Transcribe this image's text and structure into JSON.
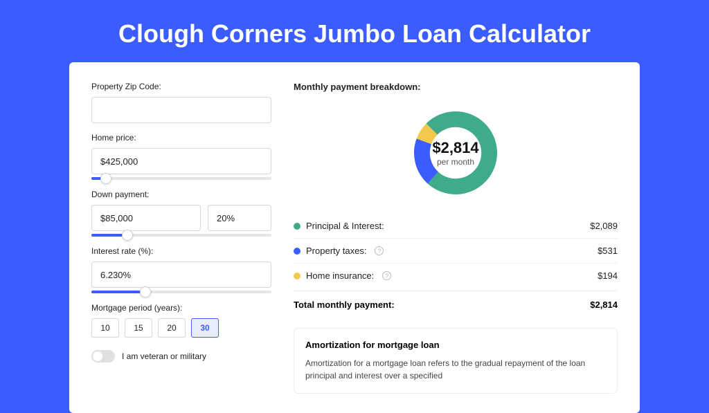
{
  "page": {
    "title": "Clough Corners Jumbo Loan Calculator",
    "background_color": "#3b5dff",
    "panel_background": "#ffffff"
  },
  "form": {
    "zip": {
      "label": "Property Zip Code:",
      "value": ""
    },
    "home_price": {
      "label": "Home price:",
      "value": "$425,000",
      "slider_pct": 8
    },
    "down_payment": {
      "label": "Down payment:",
      "amount": "$85,000",
      "pct": "20%",
      "slider_pct": 20
    },
    "interest_rate": {
      "label": "Interest rate (%):",
      "value": "6.230%",
      "slider_pct": 30
    },
    "mortgage_period": {
      "label": "Mortgage period (years):",
      "options": [
        "10",
        "15",
        "20",
        "30"
      ],
      "selected": "30"
    },
    "veteran": {
      "label": "I am veteran or military",
      "checked": false
    }
  },
  "breakdown": {
    "title": "Monthly payment breakdown:",
    "donut": {
      "total_label": "$2,814",
      "sub_label": "per month",
      "slices": [
        {
          "key": "principal_interest",
          "value": 2089,
          "color": "#3fab8b",
          "start_deg": -45,
          "sweep_deg": 267.2
        },
        {
          "key": "property_taxes",
          "value": 531,
          "color": "#3b5dff",
          "start_deg": 222.2,
          "sweep_deg": 67.9
        },
        {
          "key": "home_insurance",
          "value": 194,
          "color": "#f2c94c",
          "start_deg": 290.1,
          "sweep_deg": 24.9
        }
      ],
      "inner_ratio": 0.62
    },
    "items": [
      {
        "label": "Principal & Interest:",
        "value": "$2,089",
        "color": "#3fab8b",
        "help": false
      },
      {
        "label": "Property taxes:",
        "value": "$531",
        "color": "#3b5dff",
        "help": true
      },
      {
        "label": "Home insurance:",
        "value": "$194",
        "color": "#f2c94c",
        "help": true
      }
    ],
    "total": {
      "label": "Total monthly payment:",
      "value": "$2,814"
    }
  },
  "amortization": {
    "title": "Amortization for mortgage loan",
    "text": "Amortization for a mortgage loan refers to the gradual repayment of the loan principal and interest over a specified"
  }
}
